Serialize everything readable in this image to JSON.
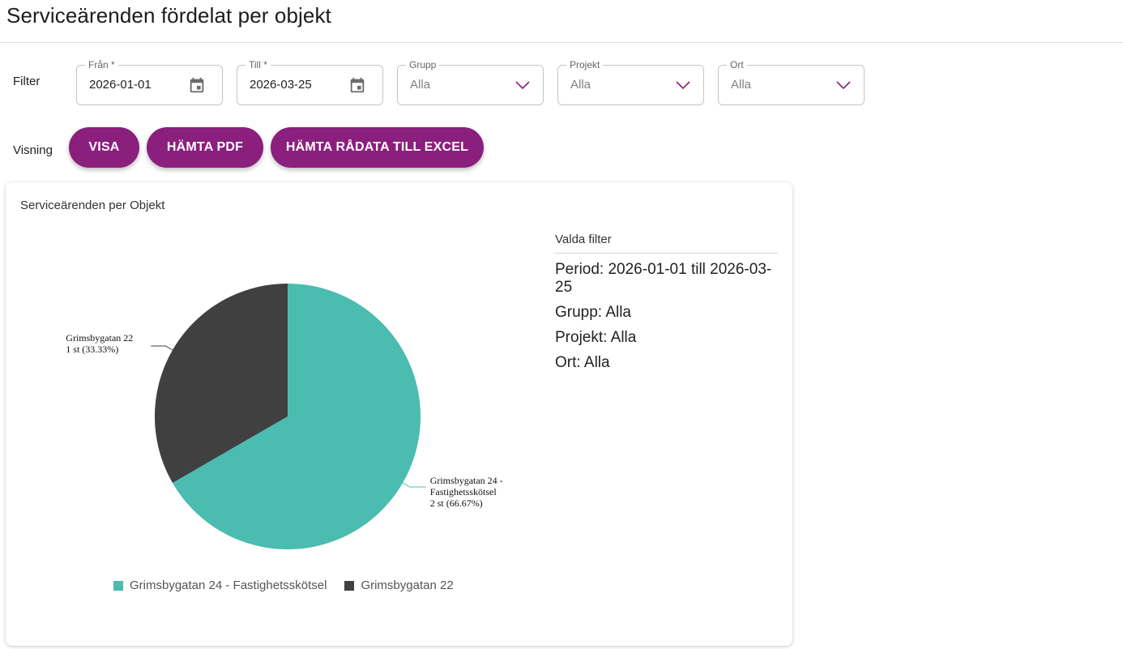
{
  "page": {
    "title": "Serviceärenden fördelat per objekt"
  },
  "filter": {
    "label": "Filter",
    "from": {
      "label": "Från *",
      "value": "2026-01-01"
    },
    "to": {
      "label": "Till *",
      "value": "2026-03-25"
    },
    "grupp": {
      "label": "Grupp",
      "value": "Alla"
    },
    "projekt": {
      "label": "Projekt",
      "value": "Alla"
    },
    "ort": {
      "label": "Ort",
      "value": "Alla"
    }
  },
  "visning": {
    "label": "Visning",
    "buttons": {
      "visa": "VISA",
      "pdf": "HÄMTA PDF",
      "excel": "HÄMTA RÅDATA TILL EXCEL"
    },
    "accent": "#8b1f7d"
  },
  "card": {
    "title": "Serviceärenden per Objekt",
    "selected_filters": {
      "heading": "Valda filter",
      "period": "Period: 2026-01-01 till 2026-03-25",
      "grupp": "Grupp: Alla",
      "projekt": "Projekt: Alla",
      "ort": "Ort: Alla"
    }
  },
  "chart_data": {
    "type": "pie",
    "title": "",
    "slices": [
      {
        "label": "Grimsbygatan 24 - Fastighetsskötsel",
        "label_lines": [
          "Grimsbygatan 24 -",
          "Fastighetsskötsel",
          "2 st (66.67%)"
        ],
        "value": 2,
        "percent": 66.67,
        "color": "#4abcb0"
      },
      {
        "label": "Grimsbygatan 22",
        "label_lines": [
          "Grimsbygatan 22",
          "1 st (33.33%)"
        ],
        "value": 1,
        "percent": 33.33,
        "color": "#404040"
      }
    ],
    "legend": [
      "Grimsbygatan 24 - Fastighetsskötsel",
      "Grimsbygatan 22"
    ],
    "legend_position": "bottom"
  }
}
